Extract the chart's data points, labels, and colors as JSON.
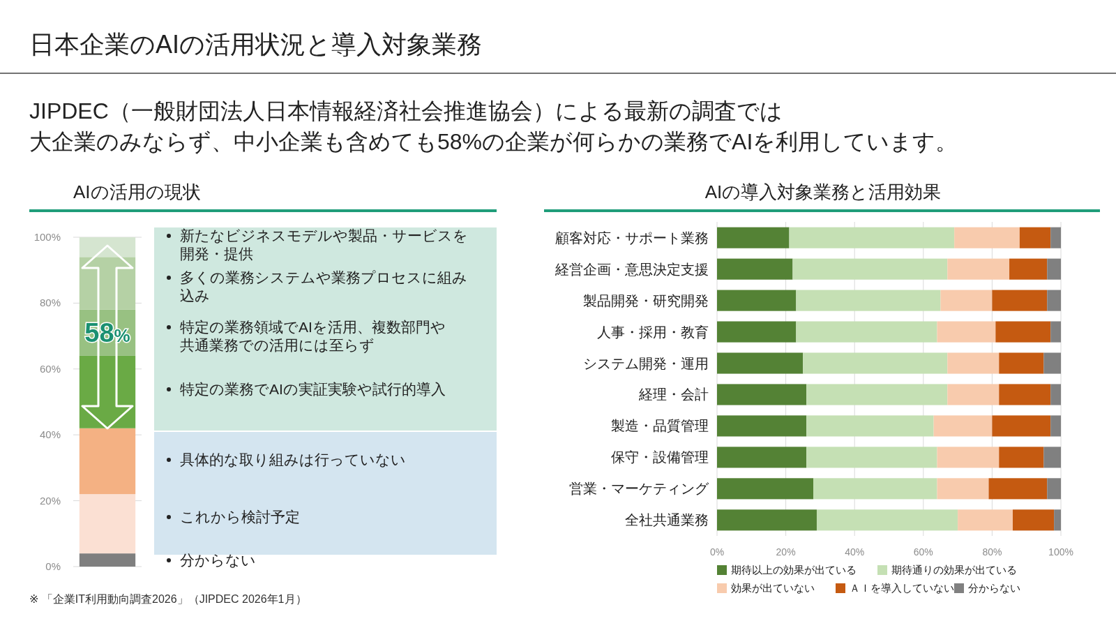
{
  "chart_data": [
    {
      "type": "other",
      "title": "日本企業のAIの活用状況と導入対象業務",
      "subtitle": "JIPDEC（一般財団法人日本情報経済社会推進協会）による最新の調査では大企業のみならず、中小企業も含めても58%の企業が何らかの業務でAIを利用しています。",
      "annotations": [
        "※ 「企業IT利用動向調査2026」（JIPDEC 2026年1月）"
      ]
    },
    {
      "type": "bar",
      "title": "AIの活用の現状",
      "stacked": true,
      "categories": [
        null
      ],
      "ylim": [
        0,
        100
      ],
      "yticks": [
        {
          "value": 0,
          "label": "0%"
        },
        {
          "value": 20,
          "label": "20%"
        },
        {
          "value": 40,
          "label": "40%"
        },
        {
          "value": 60,
          "label": "60%"
        },
        {
          "value": 80,
          "label": "80%"
        },
        {
          "value": 100,
          "label": "100%"
        }
      ],
      "grid": "y",
      "legend": "right",
      "annotations": [
        "58%"
      ],
      "series": [
        {
          "name": "分からない",
          "color": "#7f7f7f",
          "values": [
            4
          ]
        },
        {
          "name": "これから検討予定",
          "color": "#fbe0d3",
          "values": [
            18
          ]
        },
        {
          "name": "具体的な取り組みは行っていない",
          "color": "#f4b183",
          "values": [
            20
          ]
        },
        {
          "name": "特定の業務でAIの実証実験や試行的導入",
          "color": "#6aaa45",
          "values": [
            22
          ]
        },
        {
          "name": "特定の業務領域でAIを活用、複数部門や共通業務での活用には至らず",
          "color": "#98c182",
          "values": [
            14
          ]
        },
        {
          "name": "多くの業務システムや業務プロセスに組み込み",
          "color": "#b5d1a5",
          "values": [
            16
          ]
        },
        {
          "name": "新たなビジネスモデルや製品・サービスを開発・提供",
          "color": "#d5e5d0",
          "values": [
            6
          ]
        }
      ]
    },
    {
      "type": "bar",
      "title": "AIの導入対象業務と活用効果",
      "orientation": "horizontal",
      "stacked": true,
      "categories": [
        "顧客対応・サポート業務",
        "経営企画・意思決定支援",
        "製品開発・研究開発",
        "人事・採用・教育",
        "システム開発・運用",
        "経理・会計",
        "製造・品質管理",
        "保守・設備管理",
        "営業・マーケティング",
        "全社共通業務"
      ],
      "xlim": [
        0,
        100
      ],
      "xticks": [
        {
          "value": 0,
          "label": "0%"
        },
        {
          "value": 20,
          "label": "20%"
        },
        {
          "value": 40,
          "label": "40%"
        },
        {
          "value": 60,
          "label": "60%"
        },
        {
          "value": 80,
          "label": "80%"
        },
        {
          "value": 100,
          "label": "100%"
        }
      ],
      "grid": "x",
      "legend": "bottom",
      "series": [
        {
          "name": "期待以上の効果が出ている",
          "color": "#548235",
          "values": [
            21,
            22,
            23,
            23,
            25,
            26,
            26,
            26,
            28,
            29
          ]
        },
        {
          "name": "期待通りの効果が出ている",
          "color": "#c5e0b4",
          "values": [
            48,
            45,
            42,
            41,
            42,
            41,
            37,
            38,
            36,
            41
          ]
        },
        {
          "name": "効果が出ていない",
          "color": "#f8cbad",
          "values": [
            19,
            18,
            15,
            17,
            15,
            15,
            17,
            18,
            15,
            16
          ]
        },
        {
          "name": "ＡＩを導入していない",
          "color": "#c55a11",
          "values": [
            9,
            11,
            16,
            16,
            13,
            15,
            17,
            13,
            17,
            12
          ]
        },
        {
          "name": "分からない",
          "color": "#808080",
          "values": [
            3,
            4,
            4,
            3,
            5,
            3,
            3,
            5,
            4,
            2
          ]
        }
      ]
    }
  ]
}
